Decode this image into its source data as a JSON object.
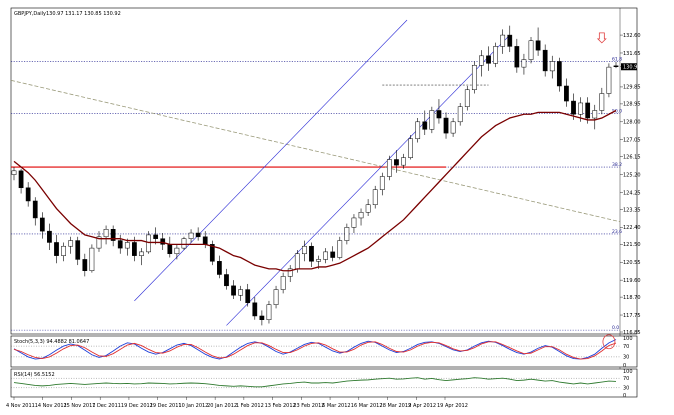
{
  "window": {
    "title": "GBPJPY,Daily",
    "ohlc_readout": "130.97 131.17 130.85 130.92"
  },
  "colors": {
    "bull_candle": "#ffffff",
    "bear_candle": "#000000",
    "candle_outline": "#000000",
    "moving_average": "#7a0000",
    "channel": "#2b2bd6",
    "fib_line": "#1a1a8c",
    "support_line": "#e00000",
    "trend_dashed": "#9a9a7a",
    "stoch_main": "#1f3fd9",
    "stoch_signal": "#e03030",
    "rsi_line": "#2f7a2f",
    "annotation": "#e04040"
  },
  "chart_data": [
    {
      "type": "candlestick",
      "panel": "main",
      "title": "GBPJPY,Daily",
      "y_ticks": [
        "132.60",
        "131.65",
        "130.92",
        "129.85",
        "128.95",
        "128.00",
        "127.05",
        "126.15",
        "125.20",
        "124.25",
        "123.35",
        "122.40",
        "121.50",
        "120.55",
        "119.60",
        "118.70",
        "117.75",
        "116.85"
      ],
      "ylim": [
        116.85,
        133.4
      ],
      "current_price": 130.92,
      "x_ticks": [
        "4 Nov 2011",
        "14 Nov 2011",
        "25 Nov 2011",
        "7 Dec 2011",
        "19 Dec 2011",
        "29 Dec 2011",
        "10 Jan 2012",
        "20 Jan 2012",
        "1 Feb 2012",
        "13 Feb 2012",
        "23 Feb 2012",
        "6 Mar 2012",
        "16 Mar 2012",
        "28 Mar 2012",
        "9 Apr 2012",
        "19 Apr 2012"
      ],
      "fib_levels": [
        {
          "label": "61.8",
          "price": 131.2
        },
        {
          "label": "50.0",
          "price": 128.45
        },
        {
          "label": "38.2",
          "price": 125.6
        },
        {
          "label": "23.6",
          "price": 122.05
        },
        {
          "label": "0.0",
          "price": 116.95
        }
      ],
      "support_line_price": 125.6,
      "series": [
        {
          "name": "",
          "kind": "ohlc",
          "candles": [
            [
              125.2,
              125.6,
              124.9,
              125.4
            ],
            [
              125.4,
              125.5,
              124.2,
              124.5
            ],
            [
              124.5,
              124.8,
              123.5,
              123.8
            ],
            [
              123.8,
              124.0,
              122.5,
              122.9
            ],
            [
              122.9,
              123.2,
              121.8,
              122.2
            ],
            [
              122.2,
              122.6,
              121.2,
              121.6
            ],
            [
              121.6,
              122.0,
              120.5,
              120.9
            ],
            [
              120.9,
              121.6,
              120.6,
              121.4
            ],
            [
              121.4,
              121.9,
              121.0,
              121.7
            ],
            [
              121.7,
              121.9,
              120.4,
              120.7
            ],
            [
              120.7,
              121.0,
              119.8,
              120.1
            ],
            [
              120.1,
              121.5,
              120.0,
              121.3
            ],
            [
              121.3,
              122.2,
              121.1,
              121.9
            ],
            [
              121.9,
              122.5,
              121.5,
              122.3
            ],
            [
              122.3,
              122.5,
              121.4,
              121.7
            ],
            [
              121.7,
              122.0,
              121.0,
              121.3
            ],
            [
              121.3,
              121.8,
              120.9,
              121.6
            ],
            [
              121.6,
              121.9,
              120.6,
              120.9
            ],
            [
              120.9,
              121.3,
              120.4,
              121.1
            ],
            [
              121.1,
              122.2,
              121.0,
              122.0
            ],
            [
              122.0,
              122.4,
              121.5,
              121.8
            ],
            [
              121.8,
              122.1,
              121.2,
              121.5
            ],
            [
              121.5,
              121.9,
              120.8,
              121.0
            ],
            [
              121.0,
              121.5,
              120.7,
              121.3
            ],
            [
              121.3,
              121.9,
              121.2,
              121.8
            ],
            [
              121.8,
              122.3,
              121.6,
              122.1
            ],
            [
              122.1,
              122.4,
              121.7,
              121.9
            ],
            [
              121.9,
              122.2,
              121.3,
              121.5
            ],
            [
              121.5,
              121.7,
              120.4,
              120.6
            ],
            [
              120.6,
              120.9,
              119.7,
              119.9
            ],
            [
              119.9,
              120.2,
              119.1,
              119.3
            ],
            [
              119.3,
              119.6,
              118.6,
              118.8
            ],
            [
              118.8,
              119.3,
              118.5,
              119.1
            ],
            [
              119.1,
              119.4,
              118.2,
              118.4
            ],
            [
              118.4,
              118.7,
              117.5,
              117.7
            ],
            [
              117.7,
              118.0,
              117.2,
              117.5
            ],
            [
              117.5,
              118.5,
              117.3,
              118.3
            ],
            [
              118.3,
              119.3,
              118.1,
              119.1
            ],
            [
              119.1,
              120.0,
              118.9,
              119.8
            ],
            [
              119.8,
              120.4,
              119.5,
              120.2
            ],
            [
              120.2,
              121.2,
              120.0,
              121.0
            ],
            [
              121.0,
              121.7,
              120.6,
              121.4
            ],
            [
              121.4,
              121.6,
              120.3,
              120.6
            ],
            [
              120.6,
              120.9,
              120.2,
              120.7
            ],
            [
              120.7,
              121.3,
              120.5,
              121.1
            ],
            [
              121.1,
              121.4,
              120.6,
              120.8
            ],
            [
              120.8,
              121.9,
              120.7,
              121.7
            ],
            [
              121.7,
              122.6,
              121.5,
              122.4
            ],
            [
              122.4,
              123.1,
              122.1,
              122.9
            ],
            [
              122.9,
              123.4,
              122.5,
              123.2
            ],
            [
              123.2,
              123.9,
              123.0,
              123.6
            ],
            [
              123.6,
              124.6,
              123.4,
              124.4
            ],
            [
              124.4,
              125.3,
              124.1,
              125.1
            ],
            [
              125.1,
              126.2,
              124.9,
              126.0
            ],
            [
              126.0,
              126.5,
              125.3,
              125.7
            ],
            [
              125.7,
              126.3,
              125.5,
              126.1
            ],
            [
              126.1,
              127.3,
              126.0,
              127.1
            ],
            [
              127.1,
              128.2,
              126.9,
              128.0
            ],
            [
              128.0,
              128.6,
              127.3,
              127.6
            ],
            [
              127.6,
              128.8,
              127.4,
              128.6
            ],
            [
              128.6,
              129.2,
              127.9,
              128.2
            ],
            [
              128.2,
              128.5,
              127.1,
              127.4
            ],
            [
              127.4,
              128.2,
              127.2,
              128.0
            ],
            [
              128.0,
              129.0,
              127.8,
              128.8
            ],
            [
              128.8,
              129.9,
              128.6,
              129.7
            ],
            [
              129.7,
              131.2,
              129.5,
              131.0
            ],
            [
              131.0,
              131.8,
              130.4,
              131.5
            ],
            [
              131.5,
              132.0,
              130.7,
              131.1
            ],
            [
              131.1,
              132.2,
              130.9,
              132.0
            ],
            [
              132.0,
              132.9,
              131.6,
              132.6
            ],
            [
              132.6,
              133.1,
              131.7,
              132.0
            ],
            [
              132.0,
              132.4,
              130.6,
              130.9
            ],
            [
              130.9,
              131.6,
              130.5,
              131.3
            ],
            [
              131.3,
              132.5,
              131.1,
              132.3
            ],
            [
              132.3,
              133.0,
              131.5,
              131.8
            ],
            [
              131.8,
              132.1,
              130.4,
              130.7
            ],
            [
              130.7,
              131.5,
              130.3,
              131.2
            ],
            [
              131.2,
              131.4,
              129.6,
              129.9
            ],
            [
              129.9,
              130.3,
              128.8,
              129.1
            ],
            [
              129.1,
              129.5,
              128.1,
              128.4
            ],
            [
              128.4,
              129.3,
              128.0,
              129.0
            ],
            [
              129.0,
              129.3,
              127.9,
              128.2
            ],
            [
              128.2,
              128.9,
              127.6,
              128.6
            ],
            [
              128.6,
              129.8,
              128.4,
              129.5
            ],
            [
              129.5,
              131.1,
              129.3,
              130.9
            ],
            [
              130.97,
              131.17,
              130.85,
              130.92
            ]
          ]
        },
        {
          "name": "",
          "kind": "moving_average",
          "values": [
            125.9,
            125.6,
            125.3,
            124.9,
            124.4,
            123.9,
            123.4,
            123.0,
            122.6,
            122.3,
            122.0,
            121.9,
            121.8,
            121.8,
            121.8,
            121.8,
            121.7,
            121.7,
            121.7,
            121.6,
            121.6,
            121.6,
            121.5,
            121.5,
            121.5,
            121.5,
            121.5,
            121.5,
            121.4,
            121.3,
            121.1,
            120.9,
            120.8,
            120.6,
            120.4,
            120.3,
            120.2,
            120.2,
            120.1,
            120.1,
            120.2,
            120.2,
            120.2,
            120.3,
            120.3,
            120.4,
            120.5,
            120.7,
            120.9,
            121.1,
            121.3,
            121.6,
            121.9,
            122.2,
            122.5,
            122.8,
            123.2,
            123.6,
            124.0,
            124.4,
            124.8,
            125.2,
            125.6,
            126.0,
            126.4,
            126.8,
            127.2,
            127.5,
            127.8,
            128.0,
            128.2,
            128.3,
            128.4,
            128.4,
            128.5,
            128.5,
            128.5,
            128.5,
            128.4,
            128.3,
            128.2,
            128.1,
            128.1,
            128.2,
            128.4,
            128.6
          ]
        }
      ]
    },
    {
      "type": "line",
      "panel": "stochastic",
      "title": "Stoch(5,3,3) 94.4882 81.0647",
      "y_ticks": [
        "100",
        "70",
        "30",
        "0"
      ],
      "ylim": [
        0,
        100
      ],
      "series": [
        {
          "name": "",
          "values": [
            60,
            45,
            30,
            22,
            25,
            38,
            55,
            70,
            78,
            72,
            55,
            38,
            28,
            35,
            52,
            70,
            82,
            78,
            62,
            48,
            40,
            46,
            60,
            74,
            80,
            72,
            56,
            40,
            28,
            22,
            30,
            48,
            66,
            80,
            86,
            80,
            66,
            50,
            40,
            48,
            62,
            76,
            84,
            80,
            66,
            52,
            44,
            50,
            66,
            80,
            88,
            84,
            70,
            56,
            46,
            50,
            62,
            76,
            84,
            86,
            80,
            68,
            56,
            50,
            56,
            70,
            82,
            88,
            84,
            72,
            58,
            46,
            40,
            48,
            62,
            72,
            66,
            50,
            34,
            24,
            22,
            28,
            40,
            62,
            82,
            94.4882
          ]
        },
        {
          "name": "",
          "values": [
            58,
            50,
            38,
            28,
            24,
            30,
            44,
            60,
            72,
            74,
            64,
            48,
            34,
            32,
            42,
            58,
            74,
            80,
            72,
            58,
            46,
            44,
            52,
            66,
            76,
            76,
            64,
            48,
            34,
            26,
            28,
            40,
            56,
            72,
            82,
            82,
            72,
            58,
            46,
            46,
            56,
            70,
            80,
            82,
            74,
            60,
            48,
            48,
            58,
            74,
            84,
            86,
            76,
            62,
            50,
            48,
            56,
            70,
            80,
            84,
            82,
            72,
            60,
            52,
            54,
            64,
            78,
            86,
            86,
            76,
            64,
            52,
            42,
            44,
            56,
            68,
            68,
            56,
            40,
            28,
            22,
            24,
            34,
            52,
            72,
            81.0647
          ]
        }
      ]
    },
    {
      "type": "line",
      "panel": "rsi",
      "title": "RSI(14) 56.5152",
      "y_ticks": [
        "100",
        "70",
        "30",
        "0"
      ],
      "ylim": [
        0,
        100
      ],
      "series": [
        {
          "name": "",
          "values": [
            52,
            48,
            44,
            40,
            38,
            40,
            44,
            46,
            48,
            46,
            44,
            46,
            48,
            50,
            48,
            47,
            48,
            46,
            47,
            50,
            49,
            48,
            46,
            47,
            49,
            50,
            49,
            47,
            44,
            40,
            38,
            36,
            38,
            36,
            34,
            34,
            38,
            42,
            46,
            48,
            52,
            54,
            50,
            50,
            52,
            50,
            54,
            58,
            60,
            62,
            63,
            66,
            68,
            70,
            66,
            67,
            70,
            72,
            66,
            69,
            64,
            60,
            63,
            66,
            68,
            72,
            70,
            66,
            68,
            70,
            66,
            60,
            62,
            66,
            62,
            58,
            60,
            54,
            50,
            46,
            50,
            46,
            50,
            54,
            58,
            56.5152
          ]
        }
      ]
    }
  ]
}
